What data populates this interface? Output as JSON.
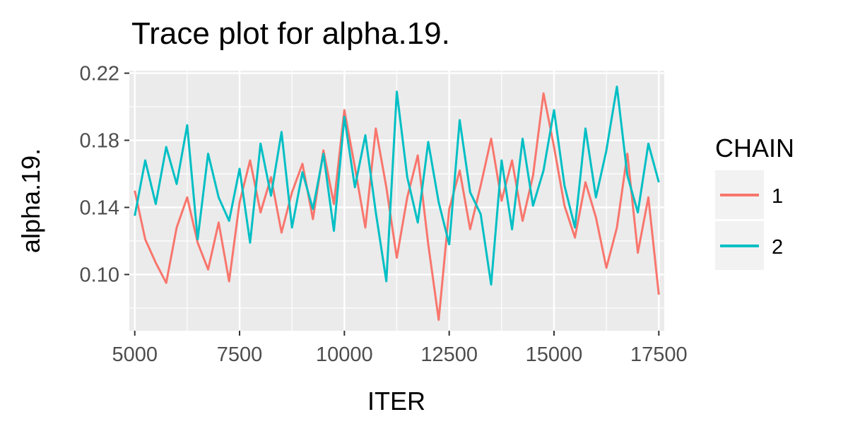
{
  "chart_data": {
    "type": "line",
    "title": "Trace plot for alpha.19.",
    "xlabel": "ITER",
    "ylabel": "alpha.19.",
    "xlim": [
      4870,
      17630
    ],
    "ylim": [
      0.0665,
      0.2215
    ],
    "xticks": [
      5000,
      7500,
      10000,
      12500,
      15000,
      17500
    ],
    "xtick_labels": [
      "5000",
      "7500",
      "10000",
      "12500",
      "15000",
      "17500"
    ],
    "yticks": [
      0.1,
      0.14,
      0.18,
      0.22
    ],
    "ytick_labels": [
      "0.10",
      "0.14",
      "0.18",
      "0.22"
    ],
    "grid": true,
    "legend": {
      "title": "CHAIN",
      "placement": "right"
    },
    "series": [
      {
        "name": "1",
        "color": "#F8766D",
        "x": [
          5000,
          5250,
          5500,
          5750,
          6000,
          6250,
          6500,
          6750,
          7000,
          7250,
          7500,
          7750,
          8000,
          8250,
          8500,
          8750,
          9000,
          9250,
          9500,
          9750,
          10000,
          10250,
          10500,
          10750,
          11000,
          11250,
          11500,
          11750,
          12000,
          12250,
          12500,
          12750,
          13000,
          13250,
          13500,
          13750,
          14000,
          14250,
          14500,
          14750,
          15000,
          15250,
          15500,
          15750,
          16000,
          16250,
          16500,
          16750,
          17000,
          17250,
          17500
        ],
        "y": [
          0.15,
          0.121,
          0.107,
          0.095,
          0.128,
          0.146,
          0.119,
          0.103,
          0.131,
          0.096,
          0.143,
          0.168,
          0.137,
          0.158,
          0.125,
          0.149,
          0.166,
          0.133,
          0.174,
          0.142,
          0.198,
          0.164,
          0.128,
          0.187,
          0.152,
          0.11,
          0.146,
          0.171,
          0.118,
          0.073,
          0.139,
          0.162,
          0.127,
          0.153,
          0.181,
          0.144,
          0.168,
          0.132,
          0.159,
          0.208,
          0.176,
          0.141,
          0.122,
          0.155,
          0.134,
          0.104,
          0.128,
          0.172,
          0.113,
          0.146,
          0.088
        ]
      },
      {
        "name": "2",
        "color": "#00BFC4",
        "x": [
          5000,
          5250,
          5500,
          5750,
          6000,
          6250,
          6500,
          6750,
          7000,
          7250,
          7500,
          7750,
          8000,
          8250,
          8500,
          8750,
          9000,
          9250,
          9500,
          9750,
          10000,
          10250,
          10500,
          10750,
          11000,
          11250,
          11500,
          11750,
          12000,
          12250,
          12500,
          12750,
          13000,
          13250,
          13500,
          13750,
          14000,
          14250,
          14500,
          14750,
          15000,
          15250,
          15500,
          15750,
          16000,
          16250,
          16500,
          16750,
          17000,
          17250,
          17500
        ],
        "y": [
          0.135,
          0.168,
          0.142,
          0.176,
          0.154,
          0.189,
          0.121,
          0.172,
          0.146,
          0.132,
          0.163,
          0.119,
          0.178,
          0.147,
          0.185,
          0.128,
          0.161,
          0.139,
          0.172,
          0.126,
          0.194,
          0.152,
          0.183,
          0.137,
          0.096,
          0.209,
          0.158,
          0.131,
          0.179,
          0.143,
          0.118,
          0.192,
          0.149,
          0.136,
          0.094,
          0.168,
          0.127,
          0.181,
          0.141,
          0.162,
          0.198,
          0.153,
          0.128,
          0.187,
          0.146,
          0.174,
          0.212,
          0.159,
          0.137,
          0.178,
          0.155
        ]
      }
    ]
  }
}
